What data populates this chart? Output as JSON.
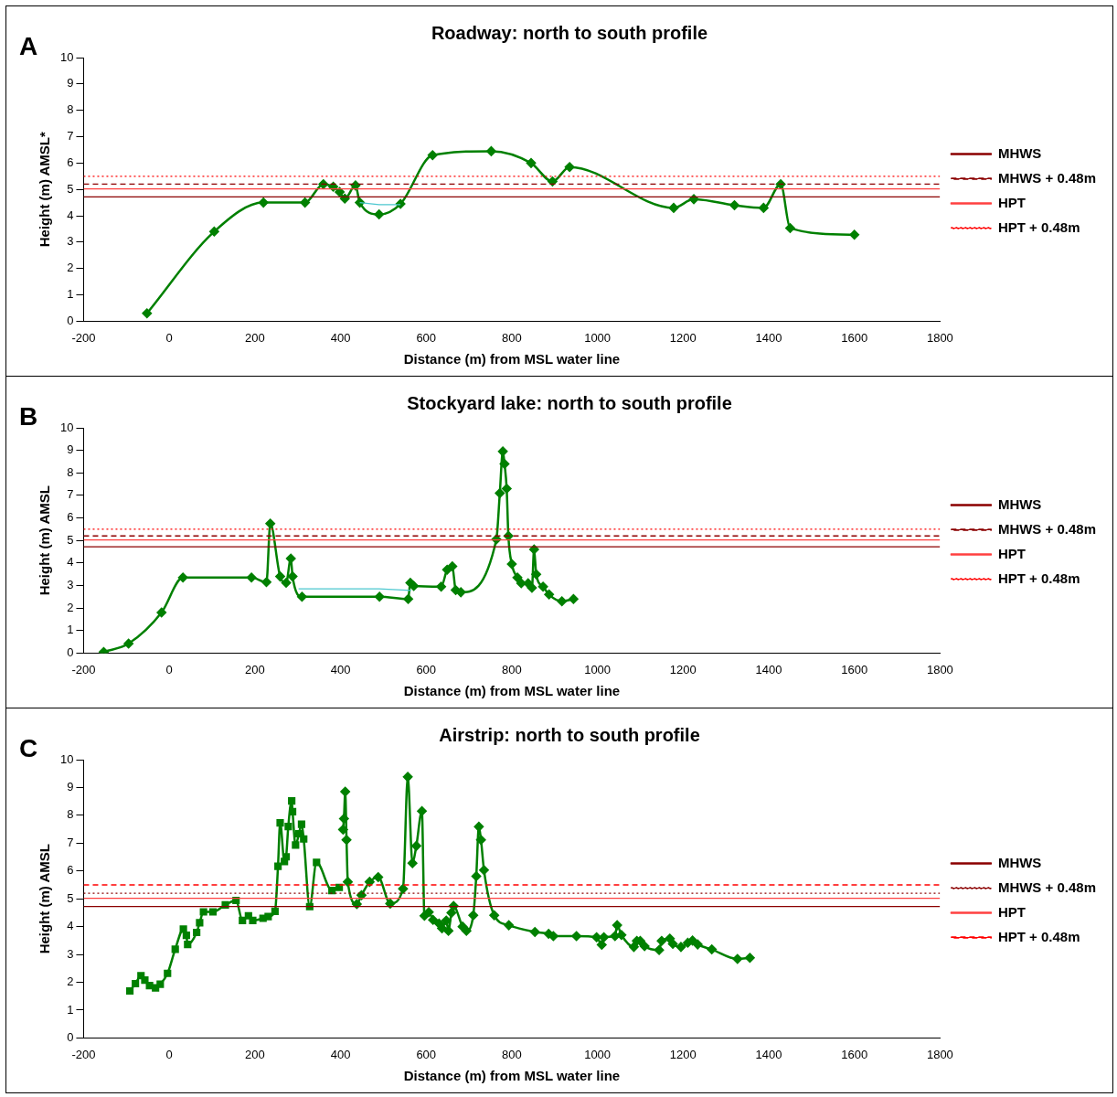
{
  "chart_data": [
    {
      "type": "line",
      "title": "Roadway: north to south profile",
      "xlabel": "Distance (m) from MSL water line",
      "ylabel": "Height (m) AMSL*",
      "annotations": [
        "A"
      ],
      "xlim": [
        -200,
        1800
      ],
      "xticks": [
        -200,
        0,
        200,
        400,
        600,
        800,
        1000,
        1200,
        1400,
        1600,
        1800
      ],
      "ylim": [
        0,
        10
      ],
      "yticks": [
        0,
        1,
        2,
        3,
        4,
        5,
        6,
        7,
        8,
        9,
        10
      ],
      "grid": false,
      "legend": "right",
      "series": [
        {
          "name": "MHWS",
          "color": "#8b0000",
          "x": [
            -200,
            1800
          ],
          "values": [
            4.72,
            4.72
          ],
          "marker": "none",
          "line_style": "solid"
        },
        {
          "name": "MHWS + 0.48m",
          "color": "#8b0000",
          "x": [
            -200,
            1800
          ],
          "values": [
            5.2,
            5.2
          ],
          "marker": "none",
          "line_style": "dashed"
        },
        {
          "name": "HPT",
          "color": "#ff4040",
          "x": [
            -200,
            1800
          ],
          "values": [
            5.02,
            5.02
          ],
          "marker": "none",
          "line_style": "solid"
        },
        {
          "name": "HPT + 0.48m",
          "color": "#ff0000",
          "x": [
            -200,
            1800
          ],
          "values": [
            5.5,
            5.5
          ],
          "marker": "none",
          "line_style": "dotted"
        },
        {
          "color": "#4dc8d0",
          "x": [
            445,
            490,
            540
          ],
          "values": [
            4.5,
            4.42,
            4.42
          ],
          "marker": "none",
          "line_style": "solid"
        },
        {
          "color": "#008000",
          "x": [
            -52,
            105,
            220,
            317,
            360,
            383,
            398,
            410,
            435,
            445,
            490,
            540,
            615,
            752,
            845,
            895,
            935,
            1178,
            1225,
            1320,
            1388,
            1428,
            1450,
            1600
          ],
          "values": [
            0.3,
            3.4,
            4.5,
            4.5,
            5.2,
            5.1,
            4.9,
            4.65,
            5.15,
            4.5,
            4.05,
            4.45,
            6.3,
            6.45,
            6.0,
            5.3,
            5.85,
            4.3,
            4.63,
            4.4,
            4.3,
            5.2,
            3.53,
            3.28
          ],
          "marker": "diamond",
          "line_style": "solid"
        }
      ]
    },
    {
      "type": "line",
      "title": "Stockyard lake: north to south profile",
      "xlabel": "Distance (m) from MSL water line",
      "ylabel": "Height (m) AMSL",
      "annotations": [
        "B"
      ],
      "xlim": [
        -200,
        1800
      ],
      "xticks": [
        -200,
        0,
        200,
        400,
        600,
        800,
        1000,
        1200,
        1400,
        1600,
        1800
      ],
      "ylim": [
        0,
        10
      ],
      "yticks": [
        0,
        1,
        2,
        3,
        4,
        5,
        6,
        7,
        8,
        9,
        10
      ],
      "grid": false,
      "legend": "right",
      "series": [
        {
          "name": "MHWS",
          "color": "#8b0000",
          "x": [
            -200,
            1800
          ],
          "values": [
            4.72,
            4.72
          ],
          "marker": "none",
          "line_style": "solid"
        },
        {
          "name": "MHWS + 0.48m",
          "color": "#8b0000",
          "x": [
            -200,
            1800
          ],
          "values": [
            5.2,
            5.2
          ],
          "marker": "none",
          "line_style": "dashed"
        },
        {
          "name": "HPT",
          "color": "#ff4040",
          "x": [
            -200,
            1800
          ],
          "values": [
            5.02,
            5.02
          ],
          "marker": "none",
          "line_style": "solid"
        },
        {
          "name": "HPT + 0.48m",
          "color": "#ff0000",
          "x": [
            -200,
            1800
          ],
          "values": [
            5.5,
            5.5
          ],
          "marker": "none",
          "line_style": "dotted"
        },
        {
          "color": "#4dc8d0",
          "x": [
            302,
            490,
            565
          ],
          "values": [
            2.85,
            2.85,
            2.78
          ],
          "marker": "none",
          "line_style": "solid"
        },
        {
          "color": "#008000",
          "x": [
            -153,
            -95,
            -18,
            32,
            192,
            227,
            236,
            259,
            273,
            284,
            288,
            310,
            491,
            558,
            563,
            571,
            635,
            649,
            661,
            669,
            681,
            764,
            772,
            779,
            783,
            788,
            792,
            800,
            813,
            822,
            838,
            847,
            852,
            857,
            873,
            887,
            917,
            944
          ],
          "values": [
            0.05,
            0.42,
            1.8,
            3.35,
            3.35,
            3.15,
            5.75,
            3.4,
            3.12,
            4.2,
            3.4,
            2.5,
            2.5,
            2.4,
            3.12,
            2.98,
            2.95,
            3.7,
            3.85,
            2.8,
            2.7,
            5.05,
            7.1,
            8.95,
            8.4,
            7.3,
            5.2,
            3.95,
            3.35,
            3.1,
            3.1,
            2.9,
            4.6,
            3.5,
            2.95,
            2.6,
            2.3,
            2.4
          ],
          "marker": "diamond",
          "line_style": "solid"
        }
      ]
    },
    {
      "type": "line",
      "title": "Airstrip: north to south profile",
      "xlabel": "Distance (m) from MSL water line",
      "ylabel": "Height (m) AMSL",
      "annotations": [
        "C"
      ],
      "xlim": [
        -200,
        1800
      ],
      "xticks": [
        -200,
        0,
        200,
        400,
        600,
        800,
        1000,
        1200,
        1400,
        1600,
        1800
      ],
      "ylim": [
        0,
        10
      ],
      "yticks": [
        0,
        1,
        2,
        3,
        4,
        5,
        6,
        7,
        8,
        9,
        10
      ],
      "grid": false,
      "legend": "right",
      "series": [
        {
          "name": "MHWS",
          "color": "#8b0000",
          "x": [
            -200,
            1800
          ],
          "values": [
            4.72,
            4.72
          ],
          "marker": "none",
          "line_style": "solid"
        },
        {
          "name": "MHWS + 0.48m",
          "color": "#8b0000",
          "x": [
            -200,
            1800
          ],
          "values": [
            5.2,
            5.2
          ],
          "marker": "none",
          "line_style": "dotted"
        },
        {
          "name": "HPT",
          "color": "#ff4040",
          "x": [
            -200,
            1800
          ],
          "values": [
            5.02,
            5.02
          ],
          "marker": "none",
          "line_style": "solid"
        },
        {
          "name": "HPT + 0.48m",
          "color": "#ff0000",
          "x": [
            -200,
            1800
          ],
          "values": [
            5.5,
            5.5
          ],
          "marker": "none",
          "line_style": "dashed"
        },
        {
          "color": "#008000",
          "x": [
            -92,
            -79,
            -66,
            -57,
            -46,
            -32,
            -21,
            -4,
            14,
            33,
            40,
            43,
            64,
            71,
            80,
            102,
            131,
            156,
            171,
            185,
            195,
            219,
            231,
            247,
            254,
            259,
            269,
            273,
            278,
            286,
            288,
            295,
            303,
            309,
            314,
            328,
            344,
            380,
            397
          ],
          "values": [
            1.69,
            1.95,
            2.24,
            2.08,
            1.88,
            1.8,
            1.93,
            2.32,
            3.19,
            3.91,
            3.69,
            3.36,
            3.79,
            4.14,
            4.53,
            4.53,
            4.78,
            4.94,
            4.22,
            4.39,
            4.22,
            4.3,
            4.36,
            4.55,
            6.17,
            7.73,
            6.34,
            6.51,
            7.6,
            8.52,
            8.13,
            6.93,
            7.34,
            7.68,
            7.15,
            4.72,
            6.31,
            5.3,
            5.41
          ],
          "marker": "square",
          "line_style": "solid"
        },
        {
          "color": "#008000",
          "x": [
            406,
            408,
            411,
            414,
            417,
            438,
            449,
            468,
            488,
            516,
            546,
            557,
            568,
            577,
            590,
            596,
            606,
            616,
            630,
            637,
            647,
            652,
            659,
            664,
            685,
            694,
            710,
            717,
            723,
            728,
            735,
            759,
            793,
            854,
            886,
            897,
            951,
            998,
            1010,
            1015,
            1041,
            1046,
            1056,
            1085,
            1092,
            1100,
            1110,
            1144,
            1150,
            1169,
            1176,
            1195,
            1211,
            1222,
            1234,
            1267,
            1327,
            1356
          ],
          "values": [
            7.49,
            7.88,
            8.85,
            7.12,
            5.61,
            4.81,
            5.13,
            5.61,
            5.78,
            4.83,
            5.36,
            9.38,
            6.28,
            6.9,
            8.15,
            4.39,
            4.52,
            4.24,
            4.11,
            3.94,
            4.22,
            3.85,
            4.5,
            4.74,
            4.0,
            3.85,
            4.41,
            5.81,
            7.59,
            7.12,
            6.03,
            4.41,
            4.05,
            3.81,
            3.74,
            3.66,
            3.66,
            3.62,
            3.35,
            3.62,
            3.66,
            4.05,
            3.7,
            3.27,
            3.49,
            3.49,
            3.3,
            3.16,
            3.49,
            3.57,
            3.38,
            3.27,
            3.42,
            3.5,
            3.36,
            3.18,
            2.84,
            2.88
          ],
          "marker": "diamond",
          "line_style": "solid"
        }
      ]
    }
  ]
}
